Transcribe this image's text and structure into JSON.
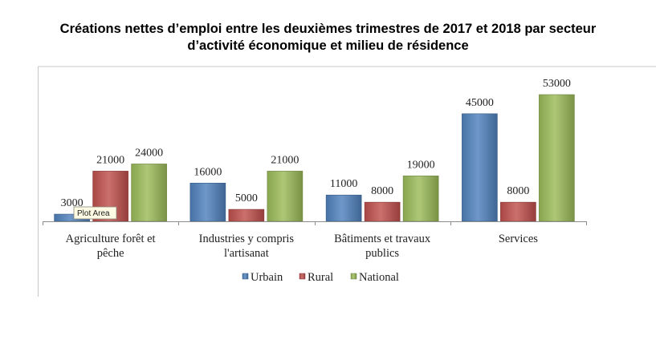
{
  "chart_data": {
    "type": "bar",
    "title_lines": [
      "Créations nettes d’emploi entre les deuxièmes trimestres de 2017 et 2018 par secteur",
      "d’activité économique et milieu de résidence"
    ],
    "categories": [
      [
        "Agriculture forêt et",
        "pêche"
      ],
      [
        "Industries y compris",
        "l'artisanat"
      ],
      [
        "Bâtiments et travaux",
        "publics"
      ],
      [
        "Services"
      ]
    ],
    "series": [
      {
        "name": "Urbain",
        "values": [
          3000,
          16000,
          11000,
          45000
        ],
        "color": "#4F81BD"
      },
      {
        "name": "Rural",
        "values": [
          21000,
          5000,
          8000,
          8000
        ],
        "color": "#C0504D"
      },
      {
        "name": "National",
        "values": [
          24000,
          21000,
          19000,
          53000
        ],
        "color": "#9BBB59"
      }
    ],
    "ylim": [
      0,
      60000
    ],
    "grid": false,
    "legend": "bottom",
    "tooltip": "Plot Area"
  }
}
